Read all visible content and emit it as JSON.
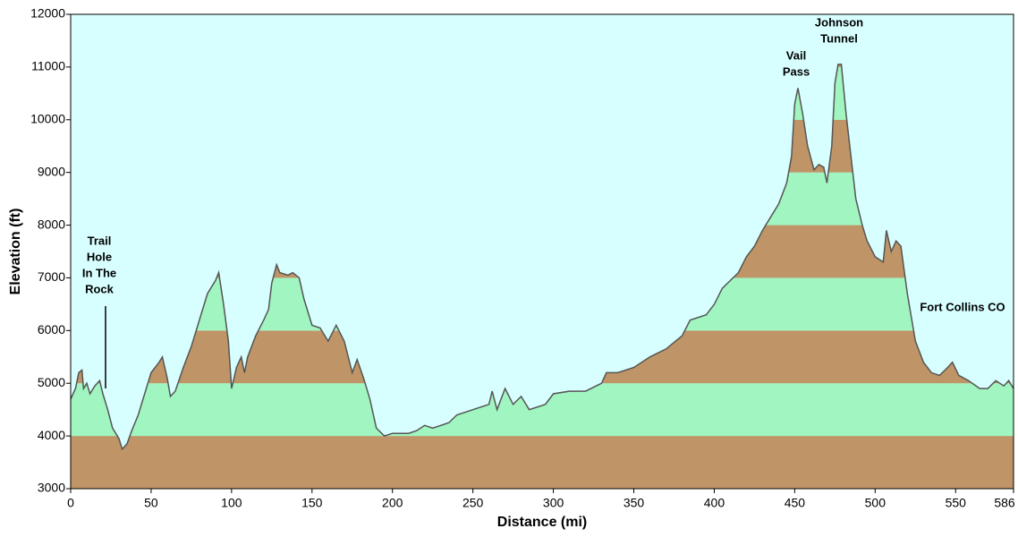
{
  "chart_data": {
    "type": "area",
    "x_label": "Distance   (mi)",
    "y_label": "Elevation (ft)",
    "background": "#d8ffff",
    "band_colors": [
      "#bf9466",
      "#a0f5c0"
    ],
    "line_color": "#555555",
    "xlim": [
      0,
      586
    ],
    "ylim": [
      3000,
      12000
    ],
    "xticks": [
      0,
      50,
      100,
      150,
      200,
      250,
      300,
      350,
      400,
      450,
      500,
      550,
      586
    ],
    "yticks": [
      3000,
      4000,
      5000,
      6000,
      7000,
      8000,
      9000,
      10000,
      11000,
      12000
    ],
    "x": [
      0,
      3,
      5,
      7,
      8,
      10,
      12,
      15,
      18,
      20,
      23,
      26,
      30,
      32,
      35,
      38,
      42,
      46,
      50,
      55,
      57,
      60,
      62,
      65,
      70,
      75,
      80,
      85,
      90,
      92,
      95,
      98,
      100,
      103,
      106,
      108,
      110,
      115,
      120,
      123,
      125,
      128,
      130,
      135,
      138,
      142,
      145,
      150,
      155,
      160,
      165,
      170,
      175,
      178,
      182,
      186,
      190,
      195,
      200,
      210,
      215,
      220,
      225,
      235,
      240,
      250,
      260,
      262,
      265,
      270,
      275,
      280,
      285,
      295,
      300,
      310,
      320,
      330,
      333,
      340,
      350,
      360,
      370,
      380,
      385,
      395,
      400,
      405,
      415,
      420,
      425,
      430,
      435,
      440,
      445,
      448,
      450,
      452,
      455,
      458,
      462,
      465,
      468,
      470,
      473,
      475,
      477,
      479,
      482,
      485,
      488,
      492,
      495,
      500,
      505,
      507,
      510,
      513,
      516,
      520,
      525,
      530,
      535,
      540,
      545,
      548,
      552,
      558,
      565,
      570,
      575,
      580,
      583,
      586
    ],
    "values": [
      4700,
      4900,
      5200,
      5250,
      4900,
      5000,
      4800,
      4950,
      5050,
      4800,
      4500,
      4150,
      3950,
      3750,
      3850,
      4100,
      4400,
      4800,
      5200,
      5400,
      5500,
      5100,
      4750,
      4850,
      5300,
      5700,
      6200,
      6700,
      6950,
      7100,
      6500,
      5800,
      4900,
      5300,
      5500,
      5200,
      5500,
      5900,
      6200,
      6400,
      6900,
      7250,
      7100,
      7050,
      7100,
      7000,
      6600,
      6100,
      6050,
      5800,
      6100,
      5800,
      5200,
      5450,
      5100,
      4700,
      4150,
      4000,
      4050,
      4050,
      4100,
      4200,
      4150,
      4250,
      4400,
      4500,
      4600,
      4850,
      4500,
      4900,
      4600,
      4750,
      4500,
      4600,
      4800,
      4850,
      4850,
      5000,
      5200,
      5200,
      5300,
      5500,
      5650,
      5900,
      6200,
      6300,
      6500,
      6800,
      7100,
      7400,
      7600,
      7900,
      8150,
      8400,
      8800,
      9300,
      10300,
      10600,
      10100,
      9500,
      9050,
      9150,
      9100,
      8800,
      9500,
      10700,
      11050,
      11050,
      10100,
      9300,
      8500,
      8000,
      7700,
      7400,
      7300,
      7900,
      7500,
      7700,
      7600,
      6700,
      5800,
      5400,
      5200,
      5150,
      5300,
      5400,
      5150,
      5050,
      4900,
      4900,
      5050,
      4950,
      5050,
      4900
    ],
    "annotations": [
      {
        "lines": [
          "Trail",
          "Hole",
          "In The",
          "Rock"
        ]
      },
      {
        "lines": [
          "Vail",
          "Pass"
        ]
      },
      {
        "lines": [
          "Johnson",
          "Tunnel"
        ]
      },
      {
        "lines": [
          "Fort Collins CO"
        ]
      }
    ]
  }
}
